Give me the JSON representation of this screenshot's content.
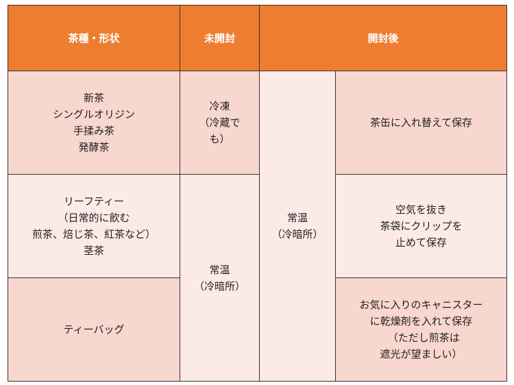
{
  "colors": {
    "header": "#ED7D31",
    "row_dark": "#F8D7CE",
    "row_light": "#FBEAE6"
  },
  "header": {
    "type": "茶種・形状",
    "unopened": "未開封",
    "opened": "開封後"
  },
  "rows": [
    {
      "type": "新茶\nシングルオリジン\n手揉み茶\n発酵茶",
      "unopened": "冷凍\n（冷蔵で\nも）",
      "opened_place": "常温\n（冷暗所）",
      "opened_method": "茶缶に入れ替えて保存"
    },
    {
      "type": "リーフティー\n（日常的に飲む\n煎茶、焙じ茶、紅茶など）\n茎茶",
      "unopened": "常温\n（冷暗所）",
      "opened_method": "空気を抜き\n茶袋にクリップを\n止めて保存"
    },
    {
      "type": "ティーバッグ",
      "opened_method": "お気に入りのキャニスター\nに乾燥剤を入れて保存\n　（ただし煎茶は\n遮光が望ましい）"
    }
  ]
}
